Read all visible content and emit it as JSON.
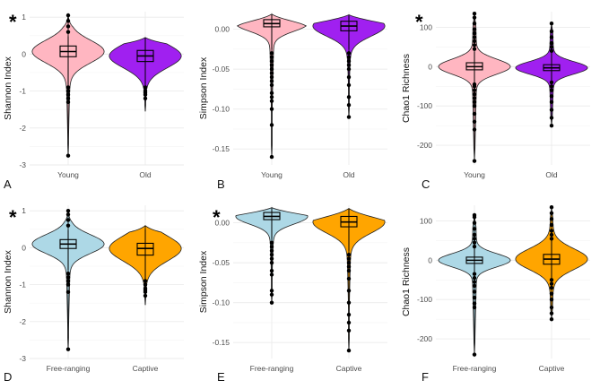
{
  "chart_data": [
    {
      "panel": "A",
      "type": "violin",
      "title": "",
      "significance": "*",
      "xlabel": "",
      "ylabel": "Shannon Index",
      "categories": [
        "Young",
        "Old"
      ],
      "colors": [
        "#ffb6c1",
        "#a020f0"
      ],
      "ylim": [
        -3.0,
        1.15
      ],
      "yticks": [
        1,
        0,
        -1,
        -2,
        -3
      ],
      "series": [
        {
          "name": "Young",
          "min": -2.75,
          "q1": -0.07,
          "median": 0.07,
          "q3": 0.22,
          "max": 1.05,
          "whisker_low": -0.85,
          "whisker_high": 0.48,
          "outliers_low": [
            -0.9,
            -1.0,
            -1.1,
            -1.2,
            -1.3,
            -2.75
          ],
          "outliers_high": [
            0.6,
            0.75,
            0.9,
            1.05
          ]
        },
        {
          "name": "Old",
          "min": -1.55,
          "q1": -0.2,
          "median": -0.05,
          "q3": 0.1,
          "max": 0.45,
          "whisker_low": -0.85,
          "whisker_high": 0.44,
          "outliers_low": [
            -0.9,
            -1.0,
            -1.05,
            -1.1,
            -1.2
          ],
          "outliers_high": []
        }
      ]
    },
    {
      "panel": "B",
      "type": "violin",
      "title": "",
      "significance": "",
      "xlabel": "",
      "ylabel": "Simpson Index",
      "categories": [
        "Young",
        "Old"
      ],
      "colors": [
        "#ffb6c1",
        "#a020f0"
      ],
      "ylim": [
        -0.17,
        0.022
      ],
      "yticks": [
        0.0,
        -0.05,
        -0.1,
        -0.15
      ],
      "tick_labels": [
        "0.00",
        "-0.05",
        "-0.10",
        "-0.15"
      ],
      "series": [
        {
          "name": "Young",
          "min": -0.16,
          "q1": 0.003,
          "median": 0.007,
          "q3": 0.012,
          "max": 0.019,
          "whisker_low": -0.025,
          "whisker_high": 0.018,
          "outliers_low": [
            -0.03,
            -0.035,
            -0.04,
            -0.045,
            -0.05,
            -0.055,
            -0.06,
            -0.065,
            -0.07,
            -0.08,
            -0.085,
            -0.09,
            -0.1,
            -0.12,
            -0.16
          ],
          "outliers_high": []
        },
        {
          "name": "Old",
          "min": -0.11,
          "q1": -0.002,
          "median": 0.004,
          "q3": 0.01,
          "max": 0.018,
          "whisker_low": -0.025,
          "whisker_high": 0.017,
          "outliers_low": [
            -0.03,
            -0.035,
            -0.04,
            -0.045,
            -0.05,
            -0.06,
            -0.07,
            -0.085,
            -0.095,
            -0.11
          ],
          "outliers_high": []
        }
      ]
    },
    {
      "panel": "C",
      "type": "violin",
      "title": "",
      "significance": "*",
      "xlabel": "",
      "ylabel": "Chao1 Richness",
      "categories": [
        "Young",
        "Old"
      ],
      "colors": [
        "#ffb6c1",
        "#a020f0"
      ],
      "ylim": [
        -250,
        140
      ],
      "yticks": [
        100,
        0,
        -100,
        -200
      ],
      "series": [
        {
          "name": "Young",
          "min": -240,
          "q1": -8,
          "median": 0,
          "q3": 10,
          "max": 135,
          "whisker_low": -40,
          "whisker_high": 38,
          "outliers_low": [
            -45,
            -50,
            -60,
            -70,
            -80,
            -90,
            -100,
            -120,
            -140,
            -160,
            -240
          ],
          "outliers_high": [
            45,
            55,
            65,
            75,
            85,
            95,
            110,
            125,
            135
          ]
        },
        {
          "name": "Old",
          "min": -150,
          "q1": -10,
          "median": -3,
          "q3": 5,
          "max": 110,
          "whisker_low": -35,
          "whisker_high": 35,
          "outliers_low": [
            -40,
            -50,
            -60,
            -75,
            -90,
            -110,
            -130,
            -150
          ],
          "outliers_high": [
            40,
            50,
            60,
            75,
            90,
            110
          ]
        }
      ]
    },
    {
      "panel": "D",
      "type": "violin",
      "title": "",
      "significance": "*",
      "xlabel": "",
      "ylabel": "Shannon Index",
      "categories": [
        "Free-ranging",
        "Captive"
      ],
      "colors": [
        "#add8e6",
        "#ffa500"
      ],
      "ylim": [
        -3.0,
        1.15
      ],
      "yticks": [
        1,
        0,
        -1,
        -2,
        -3
      ],
      "series": [
        {
          "name": "Free-ranging",
          "min": -2.75,
          "q1": -0.02,
          "median": 0.1,
          "q3": 0.22,
          "max": 1.0,
          "whisker_low": -0.6,
          "whisker_high": 0.48,
          "outliers_low": [
            -0.7,
            -0.8,
            -0.9,
            -1.0,
            -1.2,
            -2.75
          ],
          "outliers_high": [
            0.6,
            0.75,
            0.9,
            1.0
          ]
        },
        {
          "name": "Captive",
          "min": -1.55,
          "q1": -0.2,
          "median": -0.02,
          "q3": 0.12,
          "max": 0.6,
          "whisker_low": -0.85,
          "whisker_high": 0.5,
          "outliers_low": [
            -0.9,
            -1.0,
            -1.1,
            -1.15,
            -1.2,
            -1.3
          ],
          "outliers_high": []
        }
      ]
    },
    {
      "panel": "E",
      "type": "violin",
      "title": "",
      "significance": "*",
      "xlabel": "",
      "ylabel": "Simpson Index",
      "categories": [
        "Free-ranging",
        "Captive"
      ],
      "colors": [
        "#add8e6",
        "#ffa500"
      ],
      "ylim": [
        -0.17,
        0.022
      ],
      "yticks": [
        0.0,
        -0.05,
        -0.1,
        -0.15
      ],
      "tick_labels": [
        "0.00",
        "-0.05",
        "-0.10",
        "-0.15"
      ],
      "series": [
        {
          "name": "Free-ranging",
          "min": -0.1,
          "q1": 0.004,
          "median": 0.008,
          "q3": 0.013,
          "max": 0.019,
          "whisker_low": -0.02,
          "whisker_high": 0.018,
          "outliers_low": [
            -0.025,
            -0.03,
            -0.035,
            -0.04,
            -0.045,
            -0.05,
            -0.06,
            -0.065,
            -0.085,
            -0.09,
            -0.1
          ],
          "outliers_high": []
        },
        {
          "name": "Captive",
          "min": -0.16,
          "q1": -0.005,
          "median": 0.001,
          "q3": 0.008,
          "max": 0.018,
          "whisker_low": -0.035,
          "whisker_high": 0.017,
          "outliers_low": [
            -0.04,
            -0.045,
            -0.05,
            -0.055,
            -0.06,
            -0.07,
            -0.085,
            -0.1,
            -0.115,
            -0.125,
            -0.135,
            -0.16
          ],
          "outliers_high": []
        }
      ]
    },
    {
      "panel": "F",
      "type": "violin",
      "title": "",
      "significance": "",
      "xlabel": "",
      "ylabel": "Chao1 Richness",
      "categories": [
        "Free-ranging",
        "Captive"
      ],
      "colors": [
        "#add8e6",
        "#ffa500"
      ],
      "ylim": [
        -250,
        140
      ],
      "yticks": [
        100,
        0,
        -100,
        -200
      ],
      "series": [
        {
          "name": "Free-ranging",
          "min": -240,
          "q1": -8,
          "median": 0,
          "q3": 8,
          "max": 115,
          "whisker_low": -30,
          "whisker_high": 30,
          "outliers_low": [
            -35,
            -45,
            -55,
            -65,
            -80,
            -95,
            -110,
            -120,
            -240
          ],
          "outliers_high": [
            35,
            45,
            55,
            65,
            80,
            95,
            110,
            115
          ]
        },
        {
          "name": "Captive",
          "min": -150,
          "q1": -10,
          "median": 3,
          "q3": 15,
          "max": 135,
          "whisker_low": -45,
          "whisker_high": 50,
          "outliers_low": [
            -50,
            -60,
            -70,
            -85,
            -100,
            -120,
            -135,
            -150
          ],
          "outliers_high": [
            55,
            65,
            75,
            90,
            105,
            120,
            135
          ]
        }
      ]
    }
  ]
}
